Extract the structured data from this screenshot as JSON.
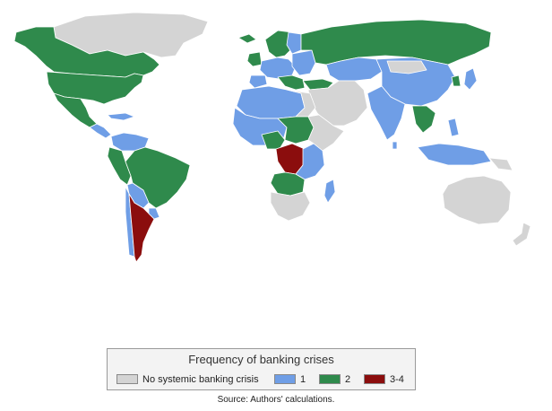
{
  "colors": {
    "none": "#d4d4d4",
    "one": "#6f9ee6",
    "two": "#2f8a4c",
    "three_four": "#8b0d0d",
    "border": "#ffffff"
  },
  "legend": {
    "title": "Frequency of banking crises",
    "items": [
      {
        "label": "No systemic banking crisis",
        "color_key": "none"
      },
      {
        "label": "1",
        "color_key": "one"
      },
      {
        "label": "2",
        "color_key": "two"
      },
      {
        "label": "3-4",
        "color_key": "three_four"
      }
    ]
  },
  "source": "Source: Authors' calculations."
}
